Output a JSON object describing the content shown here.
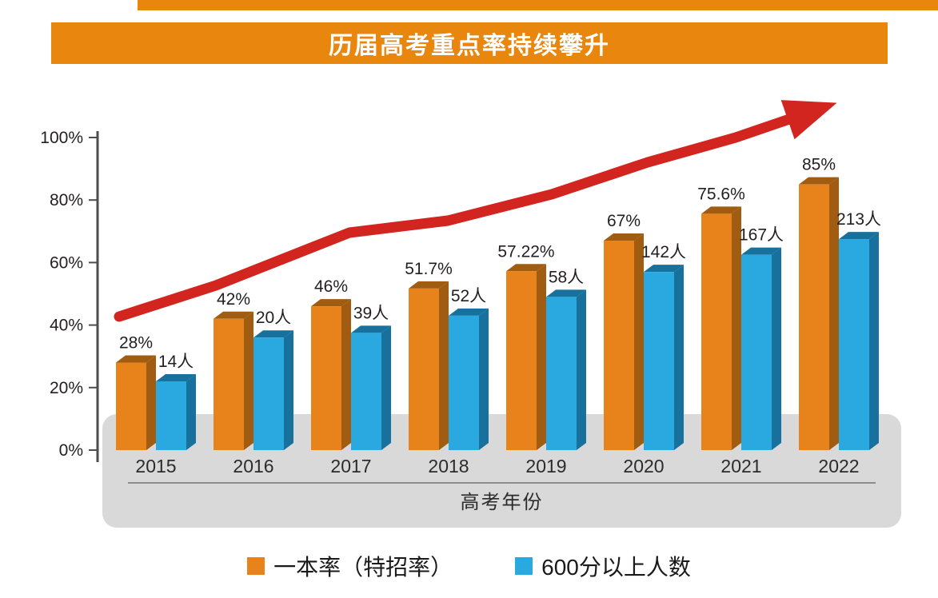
{
  "banner": {
    "title": "历届高考重点率持续攀升"
  },
  "colors": {
    "banner_bg": "#E8860D",
    "bar_primary": "#E8821A",
    "bar_primary_dark": "#A05C10",
    "bar_secondary": "#29A9E0",
    "bar_secondary_dark": "#17719C",
    "trend_arrow": "#D3251F",
    "platform": "#D9D9D9",
    "axis": "#4D4D4F",
    "text": "#231F20"
  },
  "chart_data": {
    "type": "bar",
    "title": "历届高考重点率持续攀升",
    "categories": [
      "2015",
      "2016",
      "2017",
      "2018",
      "2019",
      "2020",
      "2021",
      "2022"
    ],
    "series": [
      {
        "name": "一本率（特招率）",
        "unit": "%",
        "values": [
          28,
          42,
          46,
          51.7,
          57.22,
          67,
          75.6,
          85
        ],
        "labels": [
          "28%",
          "42%",
          "46%",
          "51.7%",
          "57.22%",
          "67%",
          "75.6%",
          "85%"
        ]
      },
      {
        "name": "600分以上人数",
        "unit": "人",
        "values": [
          14,
          20,
          39,
          52,
          58,
          142,
          167,
          213
        ],
        "labels": [
          "14人",
          "20人",
          "39人",
          "52人",
          "58人",
          "142人",
          "167人",
          "213人"
        ],
        "display_heights_pct": [
          22,
          36,
          37.5,
          43,
          49,
          57,
          62.5,
          67.5
        ]
      }
    ],
    "yticks": [
      {
        "label": "100%",
        "value": 100
      },
      {
        "label": "80%",
        "value": 80
      },
      {
        "label": "60%",
        "value": 60
      },
      {
        "label": "40%",
        "value": 40
      },
      {
        "label": "20%",
        "value": 20
      },
      {
        "label": "0%",
        "value": 0
      }
    ],
    "ylim": [
      0,
      100
    ],
    "xlabel": "高考年份",
    "legend_position": "bottom",
    "grid": false,
    "annotations": [
      "red rising trend arrow sweeping up-right above the bars"
    ]
  }
}
